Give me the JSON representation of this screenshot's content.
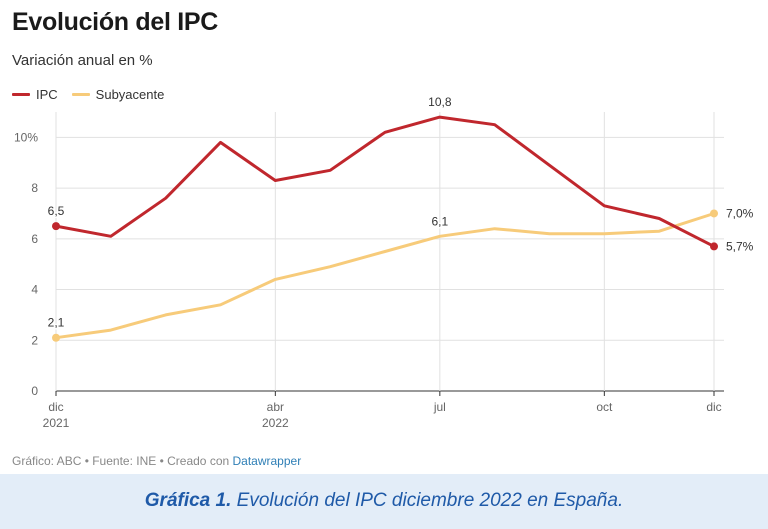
{
  "chart_data": {
    "type": "line",
    "title": "Evolución del IPC",
    "subtitle": "Variación anual en %",
    "ylim": [
      0,
      11
    ],
    "yticks": [
      {
        "value": 0,
        "label": "0"
      },
      {
        "value": 2,
        "label": "2"
      },
      {
        "value": 4,
        "label": "4"
      },
      {
        "value": 6,
        "label": "6"
      },
      {
        "value": 8,
        "label": "8"
      },
      {
        "value": 10,
        "label": "10%"
      }
    ],
    "x": [
      "2021-12",
      "2022-01",
      "2022-02",
      "2022-03",
      "2022-04",
      "2022-05",
      "2022-06",
      "2022-07",
      "2022-08",
      "2022-09",
      "2022-10",
      "2022-11",
      "2022-12"
    ],
    "xticks": [
      {
        "index": 0,
        "label": "dic",
        "sublabel": "2021"
      },
      {
        "index": 4,
        "label": "abr",
        "sublabel": "2022"
      },
      {
        "index": 7,
        "label": "jul",
        "sublabel": ""
      },
      {
        "index": 10,
        "label": "oct",
        "sublabel": ""
      },
      {
        "index": 12,
        "label": "dic",
        "sublabel": ""
      }
    ],
    "series": [
      {
        "name": "IPC",
        "color": "#c0272d",
        "values": [
          6.5,
          6.1,
          7.6,
          9.8,
          8.3,
          8.7,
          10.2,
          10.8,
          10.5,
          8.9,
          7.3,
          6.8,
          5.7
        ]
      },
      {
        "name": "Subyacente",
        "color": "#f7cb7a",
        "values": [
          2.1,
          2.4,
          3.0,
          3.4,
          4.4,
          4.9,
          5.5,
          6.1,
          6.4,
          6.2,
          6.2,
          6.3,
          7.0
        ]
      }
    ],
    "annotations": [
      {
        "series": 0,
        "index": 0,
        "label": "6,5",
        "position": "above",
        "marker": true
      },
      {
        "series": 0,
        "index": 7,
        "label": "10,8",
        "position": "above",
        "marker": false
      },
      {
        "series": 0,
        "index": 12,
        "label": "5,7%",
        "position": "right",
        "marker": true
      },
      {
        "series": 1,
        "index": 0,
        "label": "2,1",
        "position": "above",
        "marker": true
      },
      {
        "series": 1,
        "index": 7,
        "label": "6,1",
        "position": "above",
        "marker": false
      },
      {
        "series": 1,
        "index": 12,
        "label": "7,0%",
        "position": "right",
        "marker": true
      }
    ],
    "grid": true,
    "legend": "top-left"
  },
  "footer": {
    "text": "Gráfico: ABC • Fuente: INE • Creado con ",
    "link": "Datawrapper"
  },
  "caption": {
    "bold": "Gráfica 1.",
    "text": " Evolución del IPC diciembre 2022 en España.",
    "color": "#1f5aa8",
    "band_color": "#e3edf8"
  }
}
